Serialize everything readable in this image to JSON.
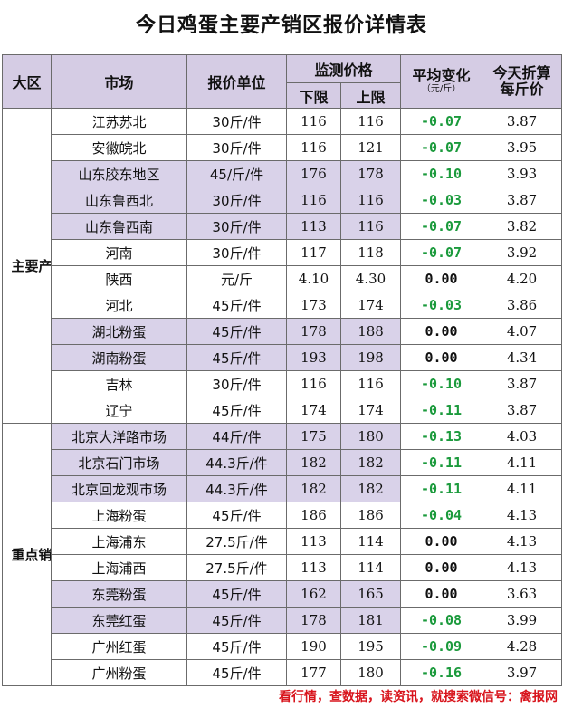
{
  "title": "今日鸡蛋主要产销区报价详情表",
  "headers": {
    "region": "大区",
    "market": "市场",
    "unit": "报价单位",
    "monitor": "监测价格",
    "lower": "下限",
    "upper": "上限",
    "avg_change": "平均变化",
    "avg_change_unit": "（元/斤）",
    "today_price_line1": "今天折算",
    "today_price_line2": "每斤价"
  },
  "colors": {
    "header_bg": "#d5cce4",
    "highlight_bg": "#d9d2e9",
    "negative_change": "#1b9a3c",
    "footer_red": "#d8141c"
  },
  "groups": [
    {
      "region": "主要产区",
      "rows": [
        {
          "market": "江苏苏北",
          "unit": "30斤/件",
          "lower": "116",
          "upper": "116",
          "change": "-0.07",
          "price": "3.87",
          "hl": ""
        },
        {
          "market": "安徽皖北",
          "unit": "30斤/件",
          "lower": "116",
          "upper": "121",
          "change": "-0.07",
          "price": "3.95",
          "hl": ""
        },
        {
          "market": "山东胶东地区",
          "unit": "45/斤/件",
          "lower": "176",
          "upper": "178",
          "change": "-0.10",
          "price": "3.93",
          "hl": "hl"
        },
        {
          "market": "山东鲁西北",
          "unit": "30斤/件",
          "lower": "116",
          "upper": "116",
          "change": "-0.03",
          "price": "3.87",
          "hl": "hl"
        },
        {
          "market": "山东鲁西南",
          "unit": "30斤/件",
          "lower": "113",
          "upper": "116",
          "change": "-0.07",
          "price": "3.82",
          "hl": "hl"
        },
        {
          "market": "河南",
          "unit": "30斤/件",
          "lower": "117",
          "upper": "118",
          "change": "-0.07",
          "price": "3.92",
          "hl": ""
        },
        {
          "market": "陕西",
          "unit": "元/斤",
          "lower": "4.10",
          "upper": "4.30",
          "change": "0.00",
          "price": "4.20",
          "hl": ""
        },
        {
          "market": "河北",
          "unit": "45斤/件",
          "lower": "173",
          "upper": "174",
          "change": "-0.03",
          "price": "3.86",
          "hl": ""
        },
        {
          "market": "湖北粉蛋",
          "unit": "45斤/件",
          "lower": "178",
          "upper": "188",
          "change": "0.00",
          "price": "4.07",
          "hl": "hl2"
        },
        {
          "market": "湖南粉蛋",
          "unit": "45斤/件",
          "lower": "193",
          "upper": "198",
          "change": "0.00",
          "price": "4.34",
          "hl": "hl"
        },
        {
          "market": "吉林",
          "unit": "30斤/件",
          "lower": "116",
          "upper": "116",
          "change": "-0.10",
          "price": "3.87",
          "hl": ""
        },
        {
          "market": "辽宁",
          "unit": "45斤/件",
          "lower": "174",
          "upper": "174",
          "change": "-0.11",
          "price": "3.87",
          "hl": ""
        }
      ]
    },
    {
      "region": "重点销区",
      "rows": [
        {
          "market": "北京大洋路市场",
          "unit": "44斤/件",
          "lower": "175",
          "upper": "180",
          "change": "-0.13",
          "price": "4.03",
          "hl": "hl"
        },
        {
          "market": "北京石门市场",
          "unit": "44.3斤/件",
          "lower": "182",
          "upper": "182",
          "change": "-0.11",
          "price": "4.11",
          "hl": "hl"
        },
        {
          "market": "北京回龙观市场",
          "unit": "44.3斤/件",
          "lower": "182",
          "upper": "182",
          "change": "-0.11",
          "price": "4.11",
          "hl": "hl"
        },
        {
          "market": "上海粉蛋",
          "unit": "45斤/件",
          "lower": "186",
          "upper": "186",
          "change": "-0.04",
          "price": "4.13",
          "hl": ""
        },
        {
          "market": "上海浦东",
          "unit": "27.5斤/件",
          "lower": "113",
          "upper": "114",
          "change": "0.00",
          "price": "4.13",
          "hl": ""
        },
        {
          "market": "上海浦西",
          "unit": "27.5斤/件",
          "lower": "113",
          "upper": "114",
          "change": "0.00",
          "price": "4.13",
          "hl": ""
        },
        {
          "market": "东莞粉蛋",
          "unit": "45斤/件",
          "lower": "162",
          "upper": "165",
          "change": "0.00",
          "price": "3.63",
          "hl": "hl"
        },
        {
          "market": "东莞红蛋",
          "unit": "45斤/件",
          "lower": "178",
          "upper": "181",
          "change": "-0.08",
          "price": "3.99",
          "hl": "hl"
        },
        {
          "market": "广州红蛋",
          "unit": "45斤/件",
          "lower": "190",
          "upper": "195",
          "change": "-0.09",
          "price": "4.28",
          "hl": ""
        },
        {
          "market": "广州粉蛋",
          "unit": "45斤/件",
          "lower": "177",
          "upper": "180",
          "change": "-0.16",
          "price": "3.97",
          "hl": ""
        }
      ]
    }
  ],
  "footer": "看行情，查数据，读资讯，就搜索微信号：禽报网"
}
